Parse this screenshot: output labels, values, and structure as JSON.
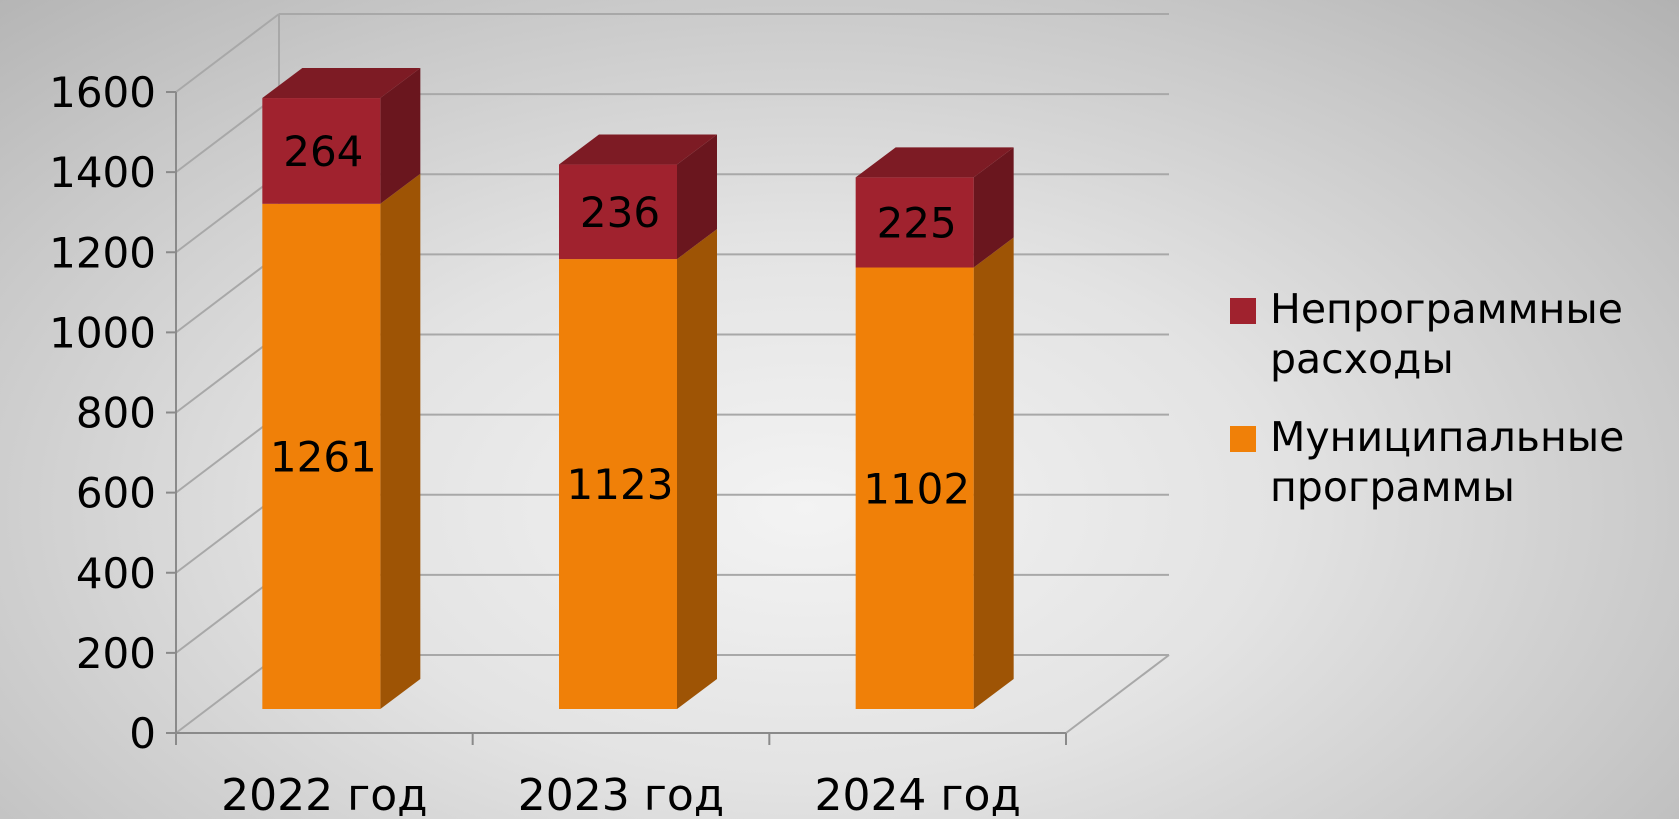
{
  "chart_data": {
    "type": "bar",
    "stacked": true,
    "three_d": true,
    "categories": [
      "2022 год",
      "2023 год",
      "2024 год"
    ],
    "series": [
      {
        "name": "Муниципальные программы",
        "values": [
          1261,
          1123,
          1102
        ],
        "color": "#f08008"
      },
      {
        "name": "Непрограммные расходы",
        "values": [
          264,
          236,
          225
        ],
        "color": "#a0222e"
      }
    ],
    "yticks": [
      0,
      200,
      400,
      600,
      800,
      1000,
      1200,
      1400,
      1600
    ],
    "ylim": [
      0,
      1600
    ],
    "grid": true,
    "legend": {
      "position": "right",
      "entries": [
        {
          "lines": [
            "Непрограммные",
            "расходы"
          ],
          "color": "#a0222e"
        },
        {
          "lines": [
            "Муниципальные",
            "программы"
          ],
          "color": "#f08008"
        }
      ]
    },
    "colors": {
      "gridline": "#a8a8a8",
      "axis": "#8a8a8a"
    }
  }
}
